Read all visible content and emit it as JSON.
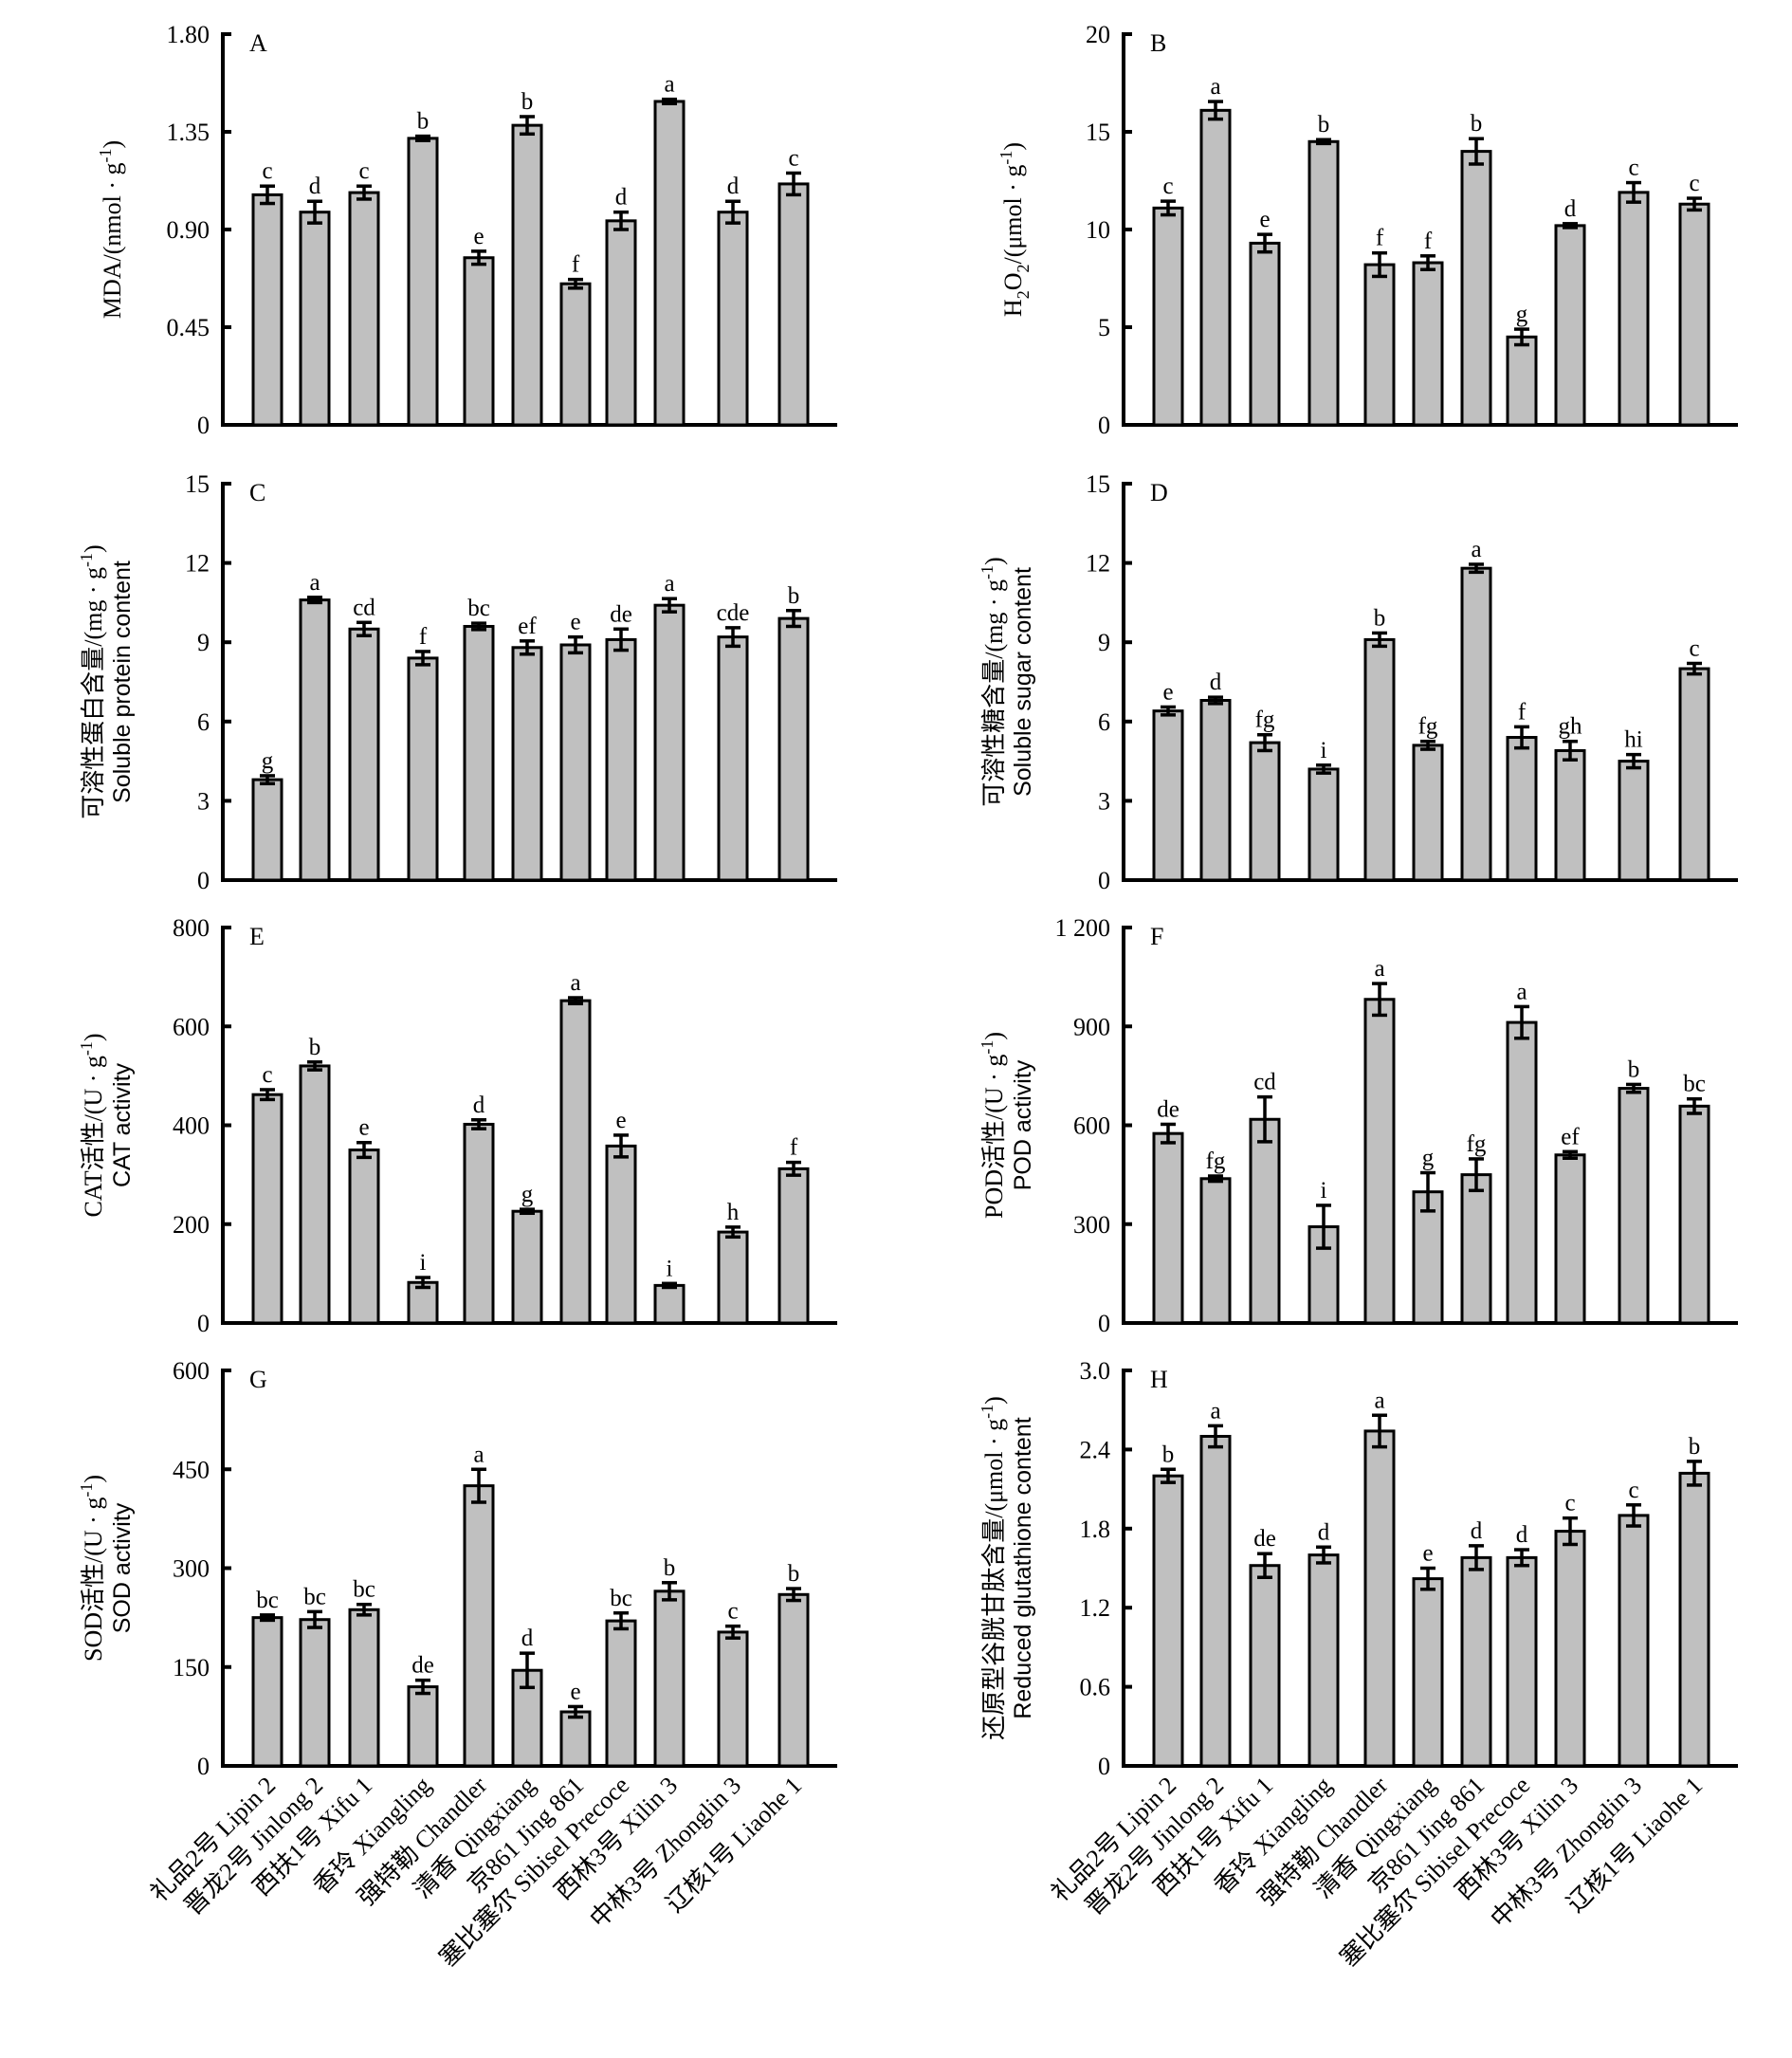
{
  "categories": [
    "礼品2号 Lipin 2",
    "晋龙2号 Jinlong 2",
    "西扶1号 Xifu 1",
    "香玲 Xiangling",
    "强特勒 Chandler",
    "清香 Qingxiang",
    "京861 Jing 861",
    "塞比塞尔 Sibisel Precoce",
    "西林3号 Xilin 3",
    "中林3号 Zhonglin 3",
    "辽核1号 Liaohe 1"
  ],
  "colors": {
    "bar_fill": "#c0c0c0",
    "bar_stroke": "#000000"
  },
  "chart_data": [
    {
      "panel": "A",
      "type": "bar",
      "title": "",
      "ylabel": "MDA/(nmol · g-1)",
      "ylabel_en": "",
      "ylim": [
        0,
        1.8
      ],
      "yticks": [
        "0",
        "0.45",
        "0.90",
        "1.35",
        "1.80"
      ],
      "ytick_values": [
        0,
        0.45,
        0.9,
        1.35,
        1.8
      ],
      "values": [
        1.06,
        0.98,
        1.07,
        1.32,
        0.77,
        1.38,
        0.65,
        0.94,
        1.49,
        0.98,
        1.11
      ],
      "errors": [
        0.04,
        0.05,
        0.03,
        0.01,
        0.03,
        0.04,
        0.02,
        0.04,
        0.01,
        0.05,
        0.05
      ],
      "letters": [
        "c",
        "d",
        "c",
        "b",
        "e",
        "b",
        "f",
        "d",
        "a",
        "d",
        "c"
      ]
    },
    {
      "panel": "B",
      "type": "bar",
      "title": "",
      "ylabel": "H2O2/(μmol · g-1)",
      "ylabel_en": "",
      "ylim": [
        0,
        20
      ],
      "yticks": [
        "0",
        "5",
        "10",
        "15",
        "20"
      ],
      "ytick_values": [
        0,
        5,
        10,
        15,
        20
      ],
      "values": [
        11.1,
        16.1,
        9.3,
        14.5,
        8.2,
        8.3,
        14.0,
        4.5,
        10.2,
        11.9,
        11.3
      ],
      "errors": [
        0.35,
        0.45,
        0.45,
        0.1,
        0.6,
        0.35,
        0.65,
        0.4,
        0.1,
        0.5,
        0.3
      ],
      "letters": [
        "c",
        "a",
        "e",
        "b",
        "f",
        "f",
        "b",
        "g",
        "d",
        "c",
        "c"
      ]
    },
    {
      "panel": "C",
      "type": "bar",
      "title": "",
      "ylabel": "可溶性蛋白含量/(mg · g-1)",
      "ylabel_en": "Soluble protein content",
      "ylim": [
        0,
        15
      ],
      "yticks": [
        "0",
        "3",
        "6",
        "9",
        "12",
        "15"
      ],
      "ytick_values": [
        0,
        3,
        6,
        9,
        12,
        15
      ],
      "values": [
        3.8,
        10.6,
        9.5,
        8.4,
        9.6,
        8.8,
        8.9,
        9.1,
        10.4,
        9.2,
        9.9
      ],
      "errors": [
        0.15,
        0.1,
        0.25,
        0.25,
        0.12,
        0.25,
        0.3,
        0.4,
        0.25,
        0.35,
        0.3
      ],
      "letters": [
        "g",
        "a",
        "cd",
        "f",
        "bc",
        "ef",
        "e",
        "de",
        "a",
        "cde",
        "b"
      ]
    },
    {
      "panel": "D",
      "type": "bar",
      "title": "",
      "ylabel": "可溶性糖含量/(mg · g-1)",
      "ylabel_en": "Soluble sugar content",
      "ylim": [
        0,
        15
      ],
      "yticks": [
        "0",
        "3",
        "6",
        "9",
        "12",
        "15"
      ],
      "ytick_values": [
        0,
        3,
        6,
        9,
        12,
        15
      ],
      "values": [
        6.4,
        6.8,
        5.2,
        4.2,
        9.1,
        5.1,
        11.8,
        5.4,
        4.9,
        4.5,
        8.0
      ],
      "errors": [
        0.15,
        0.12,
        0.3,
        0.15,
        0.25,
        0.15,
        0.15,
        0.4,
        0.35,
        0.25,
        0.2
      ],
      "letters": [
        "e",
        "d",
        "fg",
        "i",
        "b",
        "fg",
        "a",
        "f",
        "gh",
        "hi",
        "c"
      ]
    },
    {
      "panel": "E",
      "type": "bar",
      "title": "",
      "ylabel": "CAT活性/(U · g-1)",
      "ylabel_en": "CAT activity",
      "ylim": [
        0,
        800
      ],
      "yticks": [
        "0",
        "200",
        "400",
        "600",
        "800"
      ],
      "ytick_values": [
        0,
        200,
        400,
        600,
        800
      ],
      "values": [
        462,
        520,
        350,
        82,
        402,
        226,
        652,
        358,
        76,
        184,
        312
      ],
      "errors": [
        10,
        8,
        15,
        10,
        9,
        4,
        6,
        22,
        4,
        10,
        13
      ],
      "letters": [
        "c",
        "b",
        "e",
        "i",
        "d",
        "g",
        "a",
        "e",
        "i",
        "h",
        "f"
      ]
    },
    {
      "panel": "F",
      "type": "bar",
      "title": "",
      "ylabel": "POD活性/(U · g-1)",
      "ylabel_en": "POD activity",
      "ylim": [
        0,
        1200
      ],
      "yticks": [
        "0",
        "300",
        "600",
        "900",
        "1 200"
      ],
      "ytick_values": [
        0,
        300,
        600,
        900,
        1200
      ],
      "values": [
        575,
        438,
        618,
        292,
        982,
        398,
        450,
        912,
        510,
        712,
        658
      ],
      "errors": [
        28,
        8,
        68,
        65,
        48,
        58,
        48,
        48,
        10,
        12,
        22
      ],
      "letters": [
        "de",
        "fg",
        "cd",
        "i",
        "a",
        "g",
        "fg",
        "a",
        "ef",
        "b",
        "bc"
      ]
    },
    {
      "panel": "G",
      "type": "bar",
      "title": "",
      "ylabel": "SOD活性/(U · g-1)",
      "ylabel_en": "SOD activity",
      "ylim": [
        0,
        600
      ],
      "yticks": [
        "0",
        "150",
        "300",
        "450",
        "600"
      ],
      "ytick_values": [
        0,
        150,
        300,
        450,
        600
      ],
      "values": [
        225,
        222,
        237,
        120,
        425,
        145,
        82,
        220,
        265,
        203,
        260
      ],
      "errors": [
        4,
        12,
        8,
        10,
        25,
        26,
        8,
        12,
        13,
        9,
        9
      ],
      "letters": [
        "bc",
        "bc",
        "bc",
        "de",
        "a",
        "d",
        "e",
        "bc",
        "b",
        "c",
        "b"
      ]
    },
    {
      "panel": "H",
      "type": "bar",
      "title": "",
      "ylabel": "还原型谷胱甘肽含量/(μmol · g-1)",
      "ylabel_en": "Reduced glutathione content",
      "ylim": [
        0,
        3.0
      ],
      "yticks": [
        "0",
        "0.6",
        "1.2",
        "1.8",
        "2.4",
        "3.0"
      ],
      "ytick_values": [
        0,
        0.6,
        1.2,
        1.8,
        2.4,
        3.0
      ],
      "values": [
        2.2,
        2.5,
        1.52,
        1.6,
        2.54,
        1.42,
        1.58,
        1.58,
        1.78,
        1.9,
        2.22
      ],
      "errors": [
        0.05,
        0.08,
        0.09,
        0.06,
        0.12,
        0.08,
        0.09,
        0.06,
        0.1,
        0.08,
        0.09
      ],
      "letters": [
        "b",
        "a",
        "de",
        "d",
        "a",
        "e",
        "d",
        "d",
        "c",
        "c",
        "b"
      ]
    }
  ]
}
